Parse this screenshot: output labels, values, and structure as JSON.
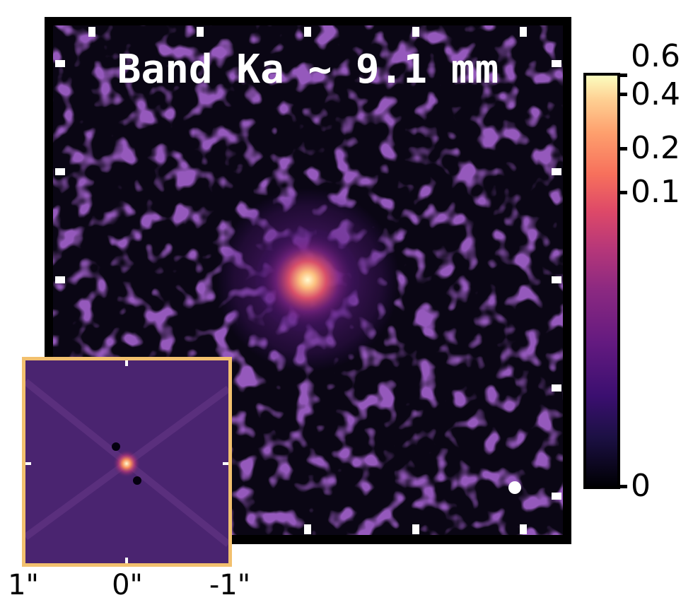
{
  "chart_data": {
    "type": "heatmap",
    "title": "Band Ka ~ 9.1 mm",
    "colorbar": {
      "ticks": [
        0.6,
        0.4,
        0.2,
        0.1,
        0
      ],
      "tick_labels": [
        "0.6",
        "0.4",
        "0.2",
        "0.1",
        "0"
      ],
      "range": [
        0,
        0.6
      ],
      "colormap": "magma",
      "scale": "nonlinear"
    },
    "inset": {
      "x_tick_labels": [
        "1\"",
        "0\"",
        "-1\""
      ],
      "border_color": "#f2c06e"
    },
    "colors": {
      "background": "#0a0614",
      "source": "#fff8c0",
      "beam": "#ffffff"
    }
  }
}
